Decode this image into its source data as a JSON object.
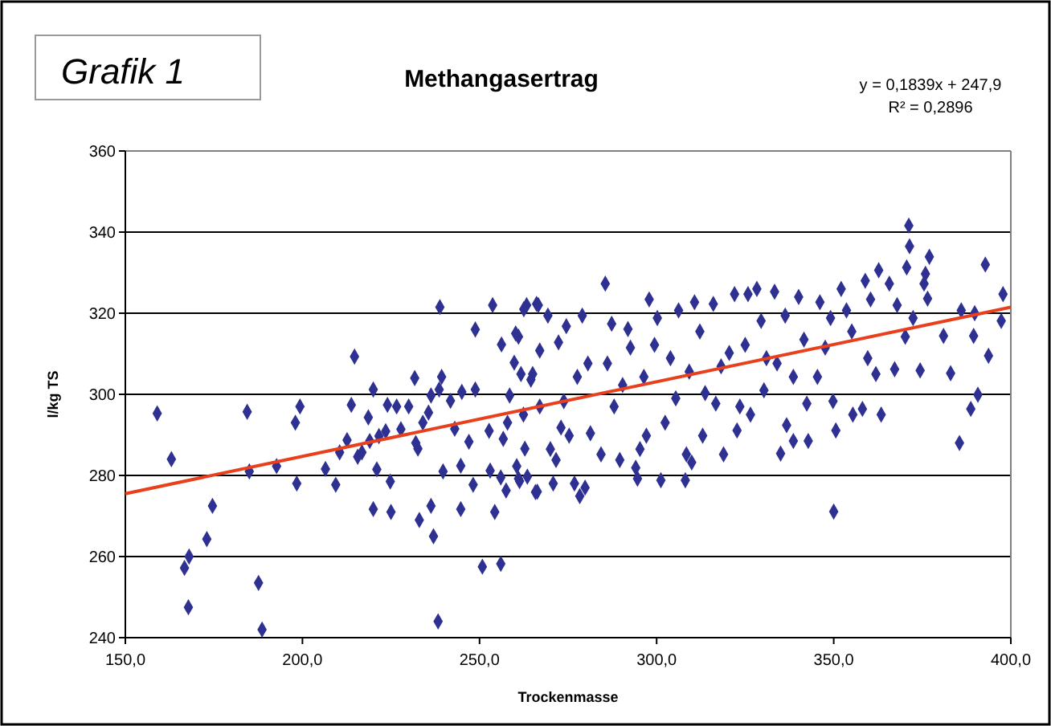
{
  "chart_data": {
    "type": "scatter",
    "title": "Methangasertrag",
    "xlabel": "Trockenmasse",
    "ylabel": "l/kg TS",
    "annotations": [
      "Grafik 1",
      "y = 0,1839x + 247,9",
      "R² = 0,2896"
    ],
    "xlim": [
      150,
      400
    ],
    "xticks": [
      {
        "value": 150,
        "label": "150,0"
      },
      {
        "value": 200,
        "label": "200,0"
      },
      {
        "value": 250,
        "label": "250,0"
      },
      {
        "value": 300,
        "label": "300,0"
      },
      {
        "value": 350,
        "label": "350,0"
      },
      {
        "value": 400,
        "label": "400,0"
      }
    ],
    "ylim": [
      240,
      360
    ],
    "yticks": [
      240,
      260,
      280,
      300,
      320,
      340,
      360
    ],
    "grid": "y",
    "series": [
      {
        "color": "#2e3192",
        "marker": "diamond",
        "x": [
          159,
          163,
          166.7,
          168,
          167.8,
          173,
          174.6,
          184.4,
          185,
          187.6,
          188.6,
          192.7,
          198,
          198.4,
          199.3,
          206.5,
          209.4,
          210.5,
          212.6,
          213.8,
          214.7,
          215.6,
          216.8,
          218.6,
          219,
          220,
          220,
          221,
          221.6,
          223.5,
          224,
          224.8,
          225,
          226.6,
          227.8,
          230,
          231.7,
          232,
          232.6,
          233,
          234,
          235.6,
          236.3,
          236.3,
          237,
          238.3,
          238.6,
          238.8,
          239.3,
          239.7,
          241.8,
          243,
          244.7,
          244.7,
          245,
          247,
          248.2,
          248.8,
          248.8,
          250.8,
          252.7,
          253,
          253.7,
          254.3,
          256,
          256,
          256.2,
          256.7,
          257.5,
          257.9,
          258.5,
          259.8,
          260.2,
          260.5,
          261.3,
          262.5,
          262.8,
          263.5,
          265,
          265.8,
          266.1,
          267,
          261,
          261.7,
          262.4,
          261,
          263.3,
          266.6,
          266.3,
          264.5,
          267,
          269.3,
          270,
          270.8,
          271.6,
          272.3,
          273,
          273.8,
          274.5,
          275.3,
          276.8,
          277.6,
          278.3,
          279,
          279.8,
          280.6,
          281.3,
          284.3,
          285.5,
          286.1,
          287.3,
          288,
          289.6,
          290.4,
          291.9,
          292.6,
          294.1,
          294.6,
          295.3,
          296.4,
          297.1,
          297.9,
          299.4,
          300.2,
          301.2,
          302.4,
          303.9,
          305.4,
          306.2,
          308.1,
          308.4,
          309.2,
          309.9,
          310.7,
          312.2,
          313,
          313.7,
          316,
          316.7,
          318.2,
          318.9,
          320.5,
          322,
          322.7,
          323.5,
          325,
          325.8,
          326.5,
          328.3,
          329.5,
          330.3,
          331,
          333.3,
          334,
          335,
          336.3,
          336.7,
          338.6,
          338.6,
          340.1,
          341.6,
          342.4,
          342.8,
          345.4,
          346.1,
          347.6,
          349.1,
          349.8,
          350,
          350.6,
          352.1,
          353.6,
          355.1,
          355.4,
          358.1,
          358.9,
          359.6,
          360.4,
          361.9,
          362.7,
          363.4,
          365.7,
          367.2,
          367.9,
          370.2,
          370.6,
          371.2,
          371.4,
          372.4,
          374.4,
          375.5,
          375.9,
          376.5,
          377,
          381,
          383,
          385.5,
          386,
          388.7,
          389.5,
          389.8,
          390.7,
          392.8,
          393.7,
          397.3,
          397.8
        ],
        "values": [
          295.3,
          284,
          257.2,
          260,
          247.5,
          264.3,
          272.5,
          295.7,
          281,
          253.5,
          242,
          282.3,
          293,
          278,
          297,
          281.6,
          277.7,
          285.7,
          288.7,
          297.4,
          309.3,
          284.6,
          285.7,
          294.3,
          288.5,
          301.2,
          271.7,
          281.5,
          289.7,
          290.9,
          297.4,
          278.5,
          271,
          297,
          291.4,
          297,
          304,
          288,
          286.6,
          269,
          293,
          295.5,
          299.7,
          272.5,
          265,
          244,
          301.2,
          321.5,
          304.3,
          281,
          298.4,
          291.5,
          271.7,
          282.4,
          300.6,
          288.3,
          277.7,
          316,
          301.2,
          257.5,
          291,
          281.2,
          322,
          271,
          258.2,
          279.5,
          312.3,
          289,
          276.3,
          293,
          299.7,
          307.8,
          315,
          282.3,
          278.6,
          321,
          286.6,
          279.7,
          305,
          275.9,
          322.3,
          310.8,
          314.2,
          305,
          295,
          279.2,
          322,
          322,
          276,
          303.6,
          297,
          319.4,
          286.5,
          278,
          283.8,
          312.8,
          291.8,
          298.3,
          316.8,
          289.8,
          278,
          304.3,
          274.9,
          319.4,
          277,
          307.6,
          290.4,
          285.2,
          327.3,
          307.6,
          317.4,
          297,
          283.8,
          302.3,
          316.1,
          311.5,
          281.9,
          279.2,
          286.5,
          304.3,
          289.8,
          323.4,
          312.2,
          318.8,
          278.8,
          293,
          308.9,
          299,
          320.7,
          278.8,
          285.2,
          305.6,
          283.2,
          322.7,
          315.5,
          289.8,
          300.3,
          322.3,
          297.7,
          306.9,
          285.2,
          310.2,
          324.7,
          291.1,
          297,
          312.2,
          324.7,
          295,
          326,
          318.1,
          301,
          308.9,
          325.3,
          307.6,
          285.4,
          319.4,
          292.4,
          304.3,
          288.5,
          324,
          313.5,
          297.7,
          288.5,
          304.3,
          322.7,
          311.5,
          318.8,
          298.3,
          271.1,
          291.1,
          326,
          320.7,
          315.5,
          295,
          296.4,
          328,
          308.9,
          323.4,
          305,
          330.6,
          295,
          327.3,
          306.2,
          322,
          314.2,
          331.3,
          341.6,
          336.5,
          318.8,
          305.9,
          327.3,
          329.7,
          323.6,
          333.9,
          314.4,
          305.2,
          288,
          320.7,
          296.4,
          314.4,
          320,
          299.9,
          332,
          309.5,
          318.1,
          324.7
        ]
      },
      {
        "type": "line",
        "color": "#e8401c",
        "x": [
          150,
          400
        ],
        "values": [
          275.5,
          321.5
        ]
      }
    ]
  }
}
